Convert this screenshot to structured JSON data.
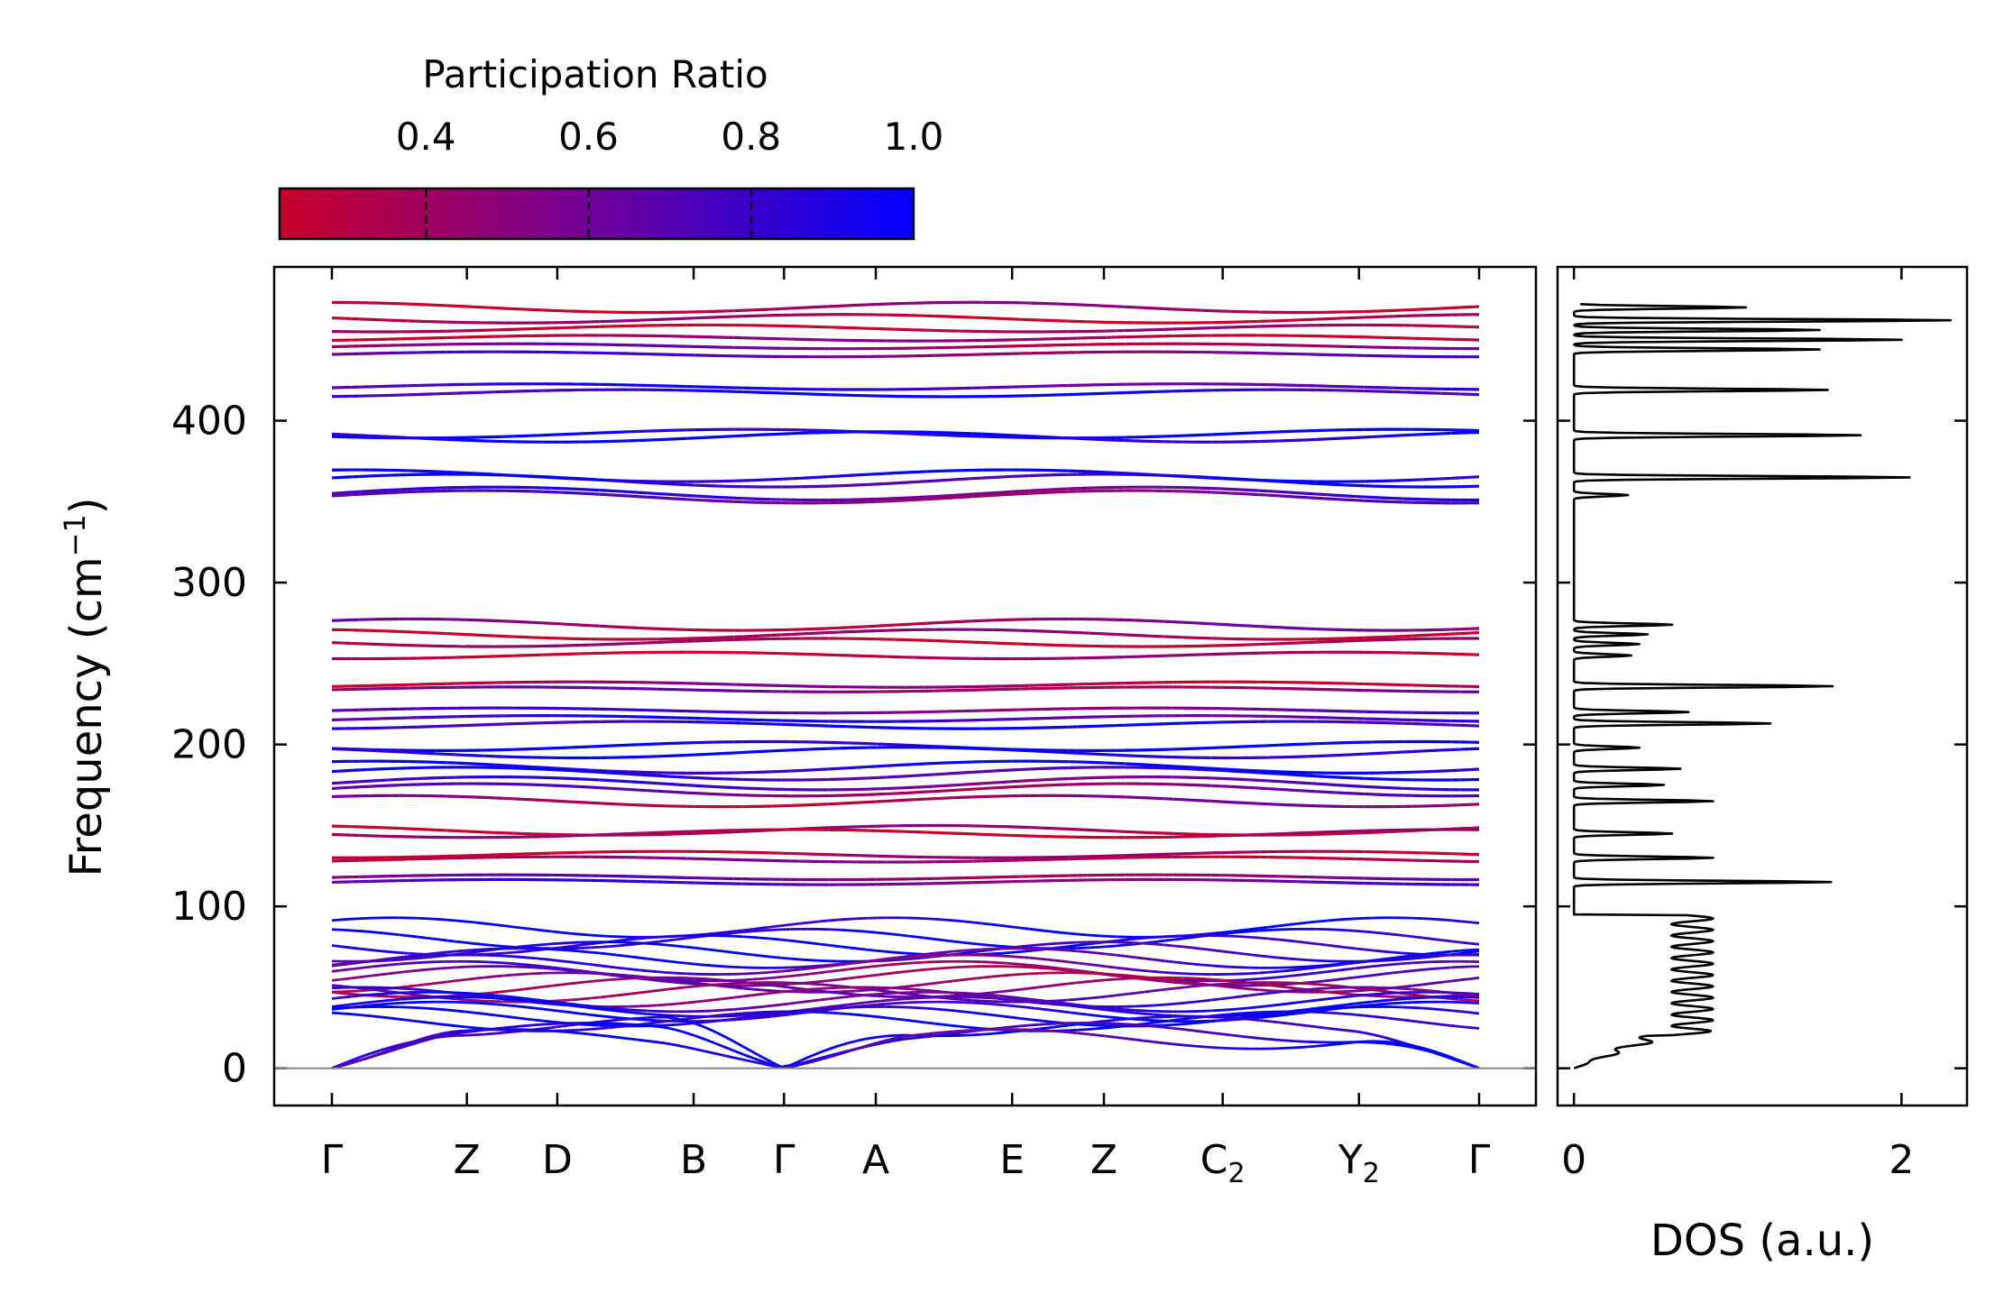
{
  "chart_data": [
    {
      "type": "line",
      "title": "",
      "xlabel": "",
      "ylabel": "Frequency (cm",
      "ylabel_sup": "−1",
      "ylabel_suffix": ")",
      "ylim": [
        -23,
        495
      ],
      "yticks": [
        0,
        100,
        200,
        300,
        400
      ],
      "kpath": [
        {
          "label": "Γ",
          "sub": "",
          "x": 0.0
        },
        {
          "label": "Z",
          "sub": "",
          "x": 1.0
        },
        {
          "label": "D",
          "sub": "",
          "x": 1.67
        },
        {
          "label": "B",
          "sub": "",
          "x": 2.68
        },
        {
          "label": "Γ",
          "sub": "",
          "x": 3.35
        },
        {
          "label": "A",
          "sub": "",
          "x": 4.03
        },
        {
          "label": "E",
          "sub": "",
          "x": 5.04
        },
        {
          "label": "Z",
          "sub": "",
          "x": 5.72
        },
        {
          "label": "C",
          "sub": "2",
          "x": 6.6
        },
        {
          "label": "Y",
          "sub": "2",
          "x": 7.61
        },
        {
          "label": "Γ",
          "sub": "",
          "x": 8.5
        }
      ],
      "bands_high": [
        470,
        463,
        457,
        451,
        446,
        441,
        421,
        417,
        392,
        390,
        366,
        363,
        355,
        353,
        274,
        268,
        263,
        255,
        237,
        234,
        221,
        216,
        212,
        199,
        195,
        186,
        182,
        176,
        172,
        165,
        147,
        145,
        132,
        129,
        118,
        115
      ],
      "bands_low_end": [
        87,
        80,
        76,
        72,
        68,
        64,
        60,
        57,
        53,
        50,
        47,
        44,
        41,
        38,
        35,
        32,
        29,
        26,
        22,
        18
      ],
      "colorscale": {
        "min": 0.22,
        "max": 1.0,
        "low_color": "#c8002a",
        "mid_color": "#7a0090",
        "high_color": "#0000ff"
      }
    },
    {
      "type": "line",
      "title": "",
      "xlabel": "DOS (a.u.)",
      "ylabel": "",
      "xlim": [
        -0.1,
        2.4
      ],
      "xticks": [
        0,
        2
      ],
      "ylim": [
        -23,
        495
      ],
      "dos_peaks": [
        {
          "f": 115,
          "v": 1.57
        },
        {
          "f": 130,
          "v": 0.85
        },
        {
          "f": 145,
          "v": 0.6
        },
        {
          "f": 165,
          "v": 0.85
        },
        {
          "f": 175,
          "v": 0.55
        },
        {
          "f": 185,
          "v": 0.65
        },
        {
          "f": 198,
          "v": 0.4
        },
        {
          "f": 213,
          "v": 1.2
        },
        {
          "f": 220,
          "v": 0.7
        },
        {
          "f": 236,
          "v": 1.58
        },
        {
          "f": 255,
          "v": 0.35
        },
        {
          "f": 262,
          "v": 0.4
        },
        {
          "f": 268,
          "v": 0.45
        },
        {
          "f": 274,
          "v": 0.6
        },
        {
          "f": 354,
          "v": 0.33
        },
        {
          "f": 365,
          "v": 2.05
        },
        {
          "f": 391,
          "v": 1.75
        },
        {
          "f": 419,
          "v": 1.55
        },
        {
          "f": 444,
          "v": 1.5
        },
        {
          "f": 450,
          "v": 2.0
        },
        {
          "f": 456,
          "v": 1.5
        },
        {
          "f": 462,
          "v": 2.3
        },
        {
          "f": 470,
          "v": 1.05
        }
      ]
    },
    {
      "type": "heatmap",
      "title": "Participation Ratio",
      "ticks": [
        0.4,
        0.6,
        0.8,
        1.0
      ],
      "tick_labels": [
        "0.4",
        "0.6",
        "0.8",
        "1.0"
      ],
      "range": [
        0.22,
        1.0
      ]
    }
  ]
}
